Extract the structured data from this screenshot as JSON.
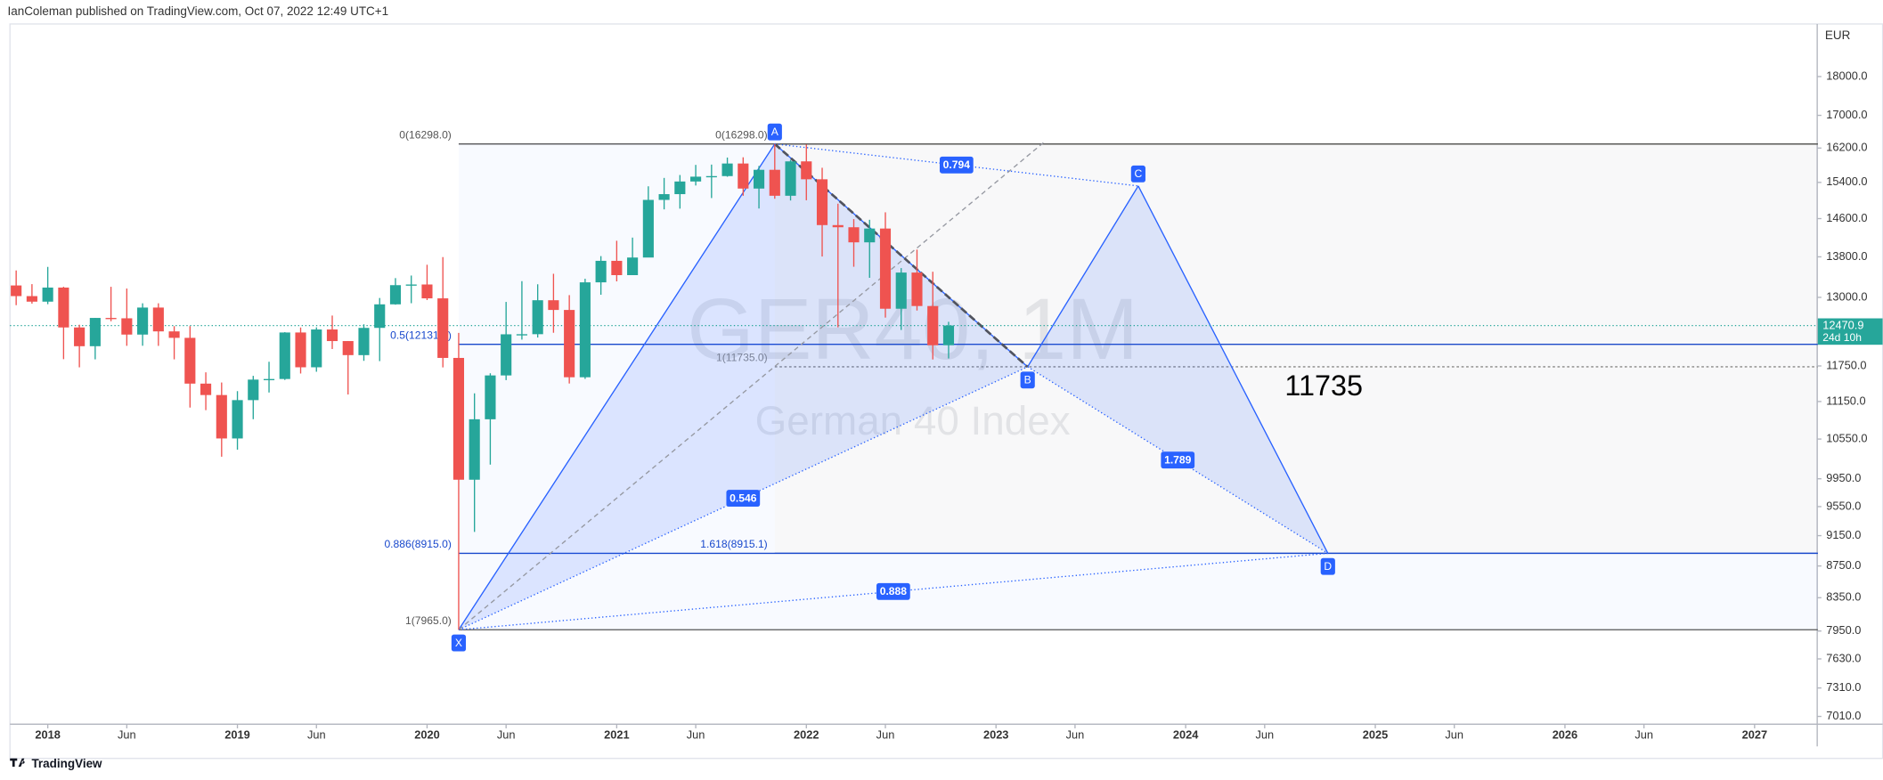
{
  "header": "IanColeman published on TradingView.com, Oct 07, 2022 12:49 UTC+1",
  "footer": "TradingView",
  "chart_data": {
    "type": "candlestick",
    "watermark": "GER40, 1M",
    "watermark_subtitle": "German 40 Index",
    "currency": "EUR",
    "log_scale": true,
    "grid": false,
    "up_color": "#26a69a",
    "down_color": "#ef5350",
    "x": [
      "2017-11",
      "2017-12",
      "2018-01",
      "2018-02",
      "2018-03",
      "2018-04",
      "2018-05",
      "2018-06",
      "2018-07",
      "2018-08",
      "2018-09",
      "2018-10",
      "2018-11",
      "2018-12",
      "2019-01",
      "2019-02",
      "2019-03",
      "2019-04",
      "2019-05",
      "2019-06",
      "2019-07",
      "2019-08",
      "2019-09",
      "2019-10",
      "2019-11",
      "2019-12",
      "2020-01",
      "2020-02",
      "2020-03",
      "2020-04",
      "2020-05",
      "2020-06",
      "2020-07",
      "2020-08",
      "2020-09",
      "2020-10",
      "2020-11",
      "2020-12",
      "2021-01",
      "2021-02",
      "2021-03",
      "2021-04",
      "2021-05",
      "2021-06",
      "2021-07",
      "2021-08",
      "2021-09",
      "2021-10",
      "2021-11",
      "2021-12",
      "2022-01",
      "2022-02",
      "2022-03",
      "2022-04",
      "2022-05",
      "2022-06",
      "2022-07",
      "2022-08",
      "2022-09",
      "2022-10"
    ],
    "open": [
      13230,
      13024,
      12918,
      13189,
      12436,
      12097,
      12612,
      12605,
      12306,
      12806,
      12364,
      12247,
      11448,
      11257,
      10559,
      11173,
      11516,
      11526,
      12344,
      11727,
      12399,
      12189,
      11939,
      12428,
      12867,
      13236,
      13249,
      12981,
      11890,
      9936,
      10862,
      11587,
      12311,
      12313,
      12945,
      12761,
      11556,
      13291,
      13719,
      13433,
      13786,
      15008,
      15136,
      15421,
      15531,
      15544,
      15835,
      15261,
      15689,
      15100,
      15885,
      15471,
      14461,
      14415,
      14098,
      14388,
      12784,
      13484,
      12835,
      12114
    ],
    "high": [
      13526,
      13256,
      13597,
      13204,
      12486,
      12613,
      13204,
      13170,
      12887,
      12887,
      12460,
      12461,
      11640,
      11467,
      11322,
      11580,
      11823,
      12350,
      12435,
      12438,
      12656,
      12190,
      12494,
      12988,
      13374,
      13425,
      13640,
      13795,
      12337,
      11286,
      11624,
      12913,
      13314,
      13253,
      13460,
      13043,
      13361,
      13815,
      14131,
      14197,
      15312,
      15502,
      15569,
      15803,
      15810,
      15975,
      15981,
      15778,
      16298,
      15917,
      16285,
      15736,
      14925,
      14590,
      14575,
      14736,
      13573,
      13948,
      13500,
      12540
    ],
    "low": [
      12851,
      12880,
      12870,
      11868,
      11726,
      11865,
      12550,
      12104,
      12105,
      12103,
      11865,
      11051,
      11009,
      10279,
      10386,
      10863,
      11299,
      11510,
      11620,
      11650,
      12047,
      11266,
      11839,
      11834,
      12860,
      12888,
      12948,
      11725,
      7965,
      9200,
      10160,
      11507,
      12215,
      12253,
      12339,
      11450,
      11528,
      13050,
      13310,
      13440,
      13880,
      14800,
      14816,
      15330,
      15049,
      15529,
      15100,
      14819,
      15034,
      14995,
      15000,
      13807,
      12439,
      13600,
      13380,
      12618,
      12390,
      12750,
      11863,
      11880
    ],
    "close": [
      13024,
      12918,
      13189,
      12436,
      12097,
      12612,
      12605,
      12306,
      12806,
      12364,
      12247,
      11448,
      11257,
      10559,
      11173,
      11516,
      11526,
      12344,
      11727,
      12399,
      12189,
      11939,
      12428,
      12867,
      13236,
      13249,
      12981,
      11890,
      9936,
      10862,
      11587,
      12311,
      12313,
      12945,
      12761,
      11556,
      13291,
      13719,
      13433,
      13786,
      15008,
      15136,
      15421,
      15531,
      15544,
      15835,
      15261,
      15689,
      15100,
      15885,
      15471,
      14461,
      14415,
      14098,
      14388,
      12784,
      13484,
      12835,
      12114,
      12470.9
    ],
    "xlim": [
      "2017-10",
      "2027-05"
    ],
    "xticks": [
      {
        "value": "2018-01",
        "label": "2018"
      },
      {
        "value": "2018-06",
        "label": "Jun"
      },
      {
        "value": "2019-01",
        "label": "2019"
      },
      {
        "value": "2019-06",
        "label": "Jun"
      },
      {
        "value": "2020-01",
        "label": "2020"
      },
      {
        "value": "2020-06",
        "label": "Jun"
      },
      {
        "value": "2021-01",
        "label": "2021"
      },
      {
        "value": "2021-06",
        "label": "Jun"
      },
      {
        "value": "2022-01",
        "label": "2022"
      },
      {
        "value": "2022-06",
        "label": "Jun"
      },
      {
        "value": "2023-01",
        "label": "2023"
      },
      {
        "value": "2023-06",
        "label": "Jun"
      },
      {
        "value": "2024-01",
        "label": "2024"
      },
      {
        "value": "2024-06",
        "label": "Jun"
      },
      {
        "value": "2025-01",
        "label": "2025"
      },
      {
        "value": "2025-06",
        "label": "Jun"
      },
      {
        "value": "2026-01",
        "label": "2026"
      },
      {
        "value": "2026-06",
        "label": "Jun"
      },
      {
        "value": "2027-01",
        "label": "2027"
      }
    ],
    "ylim": [
      6936,
      19450
    ],
    "yticks": [
      {
        "value": 18000,
        "label": "18000.0"
      },
      {
        "value": 17000,
        "label": "17000.0"
      },
      {
        "value": 16200,
        "label": "16200.0"
      },
      {
        "value": 15400,
        "label": "15400.0"
      },
      {
        "value": 14600,
        "label": "14600.0"
      },
      {
        "value": 13800,
        "label": "13800.0"
      },
      {
        "value": 13000,
        "label": "13000.0"
      },
      {
        "value": 11750,
        "label": "11750.0"
      },
      {
        "value": 11150,
        "label": "11150.0"
      },
      {
        "value": 10550,
        "label": "10550.0"
      },
      {
        "value": 9950,
        "label": "9950.0"
      },
      {
        "value": 9550,
        "label": "9550.0"
      },
      {
        "value": 9150,
        "label": "9150.0"
      },
      {
        "value": 8750,
        "label": "8750.0"
      },
      {
        "value": 8350,
        "label": "8350.0"
      },
      {
        "value": 7950,
        "label": "7950.0"
      },
      {
        "value": 7630,
        "label": "7630.0"
      },
      {
        "value": 7310,
        "label": "7310.0"
      },
      {
        "value": 7010,
        "label": "7010.0"
      }
    ],
    "last_price": {
      "value": 12470.9,
      "countdown": "24d 10h"
    },
    "fib_retracements": [
      {
        "from": "2020-03",
        "levels": [
          {
            "value": 16298,
            "label": "0(16298.0)",
            "color": "#555555",
            "style": "solid"
          },
          {
            "value": 12131.5,
            "label": "0.5(12131.5)",
            "color": "#1848cc",
            "style": "solid"
          },
          {
            "value": 8915,
            "label": "0.886(8915.0)",
            "color": "#1848cc",
            "style": "solid"
          },
          {
            "value": 7965,
            "label": "1(7965.0)",
            "color": "#555555",
            "style": "solid"
          }
        ]
      },
      {
        "from": "2021-11",
        "levels": [
          {
            "value": 16298,
            "label": "0(16298.0)",
            "color": "#555555",
            "style": "solid"
          },
          {
            "value": 11735,
            "label": "1(11735.0)",
            "color": "#888888",
            "style": "dotted"
          },
          {
            "value": 8915.1,
            "label": "1.618(8915.1)",
            "color": "#1848cc",
            "style": "solid"
          }
        ]
      }
    ],
    "pattern": {
      "color": "#2962ff",
      "points": [
        {
          "label": "X",
          "x": "2020-03",
          "value": 7965
        },
        {
          "label": "A",
          "x": "2021-11",
          "value": 16298
        },
        {
          "label": "B",
          "x": "2023-03",
          "value": 11735
        },
        {
          "label": "C",
          "x": "2023-10",
          "value": 15320
        },
        {
          "label": "D",
          "x": "2024-10",
          "value": 8915
        }
      ],
      "ratios": [
        {
          "between": [
            "X",
            "B"
          ],
          "value": 0.546
        },
        {
          "between": [
            "A",
            "C"
          ],
          "value": 0.794
        },
        {
          "between": [
            "B",
            "D"
          ],
          "value": 1.789
        },
        {
          "between": [
            "X",
            "D"
          ],
          "value": 0.888
        }
      ]
    },
    "annotation": "11735"
  }
}
